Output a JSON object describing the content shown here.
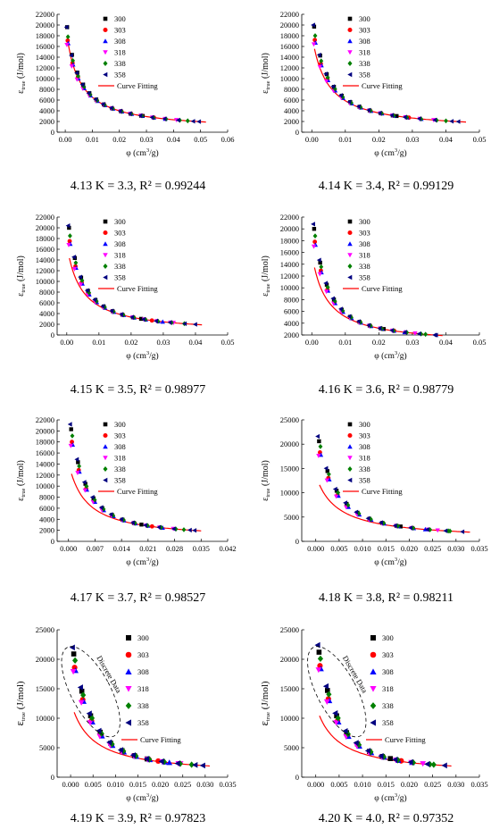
{
  "figure": {
    "legend_labels": [
      "300",
      "303",
      "308",
      "318",
      "338",
      "358"
    ],
    "fit_label": "Curve Fitting",
    "discrete_label": "Discrete Data",
    "ylabel_main": "ε",
    "ylabel_sub": "true",
    "ylabel_unit": " (J/mol)",
    "xlabel_main": "φ (cm",
    "xlabel_sup": "3",
    "xlabel_tail": "/g)",
    "series_colors": [
      "#000000",
      "#ff0000",
      "#0000ff",
      "#ff00ff",
      "#008000",
      "#000080"
    ],
    "series_markers": [
      "square",
      "circle",
      "triangle-up",
      "triangle-down",
      "diamond",
      "triangle-left"
    ],
    "fit_color": "#ff0000"
  },
  "chart_data": [
    {
      "type": "scatter",
      "caption": "4.13 K = 3.3, R² = 0.99244",
      "K": 3.3,
      "R2": 0.99244,
      "xlim": [
        -0.003,
        0.06
      ],
      "xticks": [
        "0.00",
        "0.01",
        "0.02",
        "0.03",
        "0.04",
        "0.05",
        "0.06"
      ],
      "ylim": [
        0,
        22000
      ],
      "yticks": [
        "0",
        "2000",
        "4000",
        "6000",
        "8000",
        "10000",
        "12000",
        "14000",
        "16000",
        "18000",
        "20000",
        "22000"
      ],
      "xmax": 0.052,
      "ystart": [
        19600,
        17100,
        16600,
        16300,
        17800,
        19600
      ],
      "discrete_ellipse": false
    },
    {
      "type": "scatter",
      "caption": "4.14 K = 3.4, R² = 0.99129",
      "K": 3.4,
      "R2": 0.99129,
      "xlim": [
        -0.003,
        0.05
      ],
      "xticks": [
        "0.00",
        "0.01",
        "0.02",
        "0.03",
        "0.04",
        "0.05"
      ],
      "ylim": [
        0,
        22000
      ],
      "yticks": [
        "0",
        "2000",
        "4000",
        "6000",
        "8000",
        "10000",
        "12000",
        "14000",
        "16000",
        "18000",
        "20000",
        "22000"
      ],
      "xmax": 0.046,
      "ystart": [
        19700,
        17200,
        16700,
        16400,
        18000,
        20000
      ],
      "discrete_ellipse": false
    },
    {
      "type": "scatter",
      "caption": "4.15 K = 3.5, R² = 0.98977",
      "K": 3.5,
      "R2": 0.98977,
      "xlim": [
        -0.003,
        0.05
      ],
      "xticks": [
        "0.00",
        "0.01",
        "0.02",
        "0.03",
        "0.04",
        "0.05"
      ],
      "ylim": [
        0,
        22000
      ],
      "yticks": [
        "0",
        "2000",
        "4000",
        "6000",
        "8000",
        "10000",
        "12000",
        "14000",
        "16000",
        "18000",
        "20000",
        "22000"
      ],
      "xmax": 0.042,
      "ystart": [
        20000,
        17500,
        17000,
        16800,
        18500,
        20400
      ],
      "discrete_ellipse": false
    },
    {
      "type": "scatter",
      "caption": "4.16 K = 3.6, R² = 0.98779",
      "K": 3.6,
      "R2": 0.98779,
      "xlim": [
        -0.003,
        0.05
      ],
      "xticks": [
        "0.00",
        "0.01",
        "0.02",
        "0.03",
        "0.04",
        "0.05"
      ],
      "ylim": [
        2000,
        22000
      ],
      "yticks": [
        "2000",
        "4000",
        "6000",
        "8000",
        "10000",
        "12000",
        "14000",
        "16000",
        "18000",
        "20000",
        "22000"
      ],
      "xmax": 0.039,
      "ystart": [
        20000,
        17800,
        17300,
        17000,
        18800,
        20800
      ],
      "discrete_ellipse": false
    },
    {
      "type": "scatter",
      "caption": "4.17 K = 3.7, R² = 0.98527",
      "K": 3.7,
      "R2": 0.98527,
      "xlim": [
        -0.003,
        0.042
      ],
      "xticks": [
        "0.000",
        "0.007",
        "0.014",
        "0.021",
        "0.028",
        "0.035",
        "0.042"
      ],
      "ylim": [
        0,
        22000
      ],
      "yticks": [
        "0",
        "2000",
        "4000",
        "6000",
        "8000",
        "10000",
        "12000",
        "14000",
        "16000",
        "18000",
        "20000",
        "22000"
      ],
      "xmax": 0.035,
      "ystart": [
        20300,
        18000,
        17500,
        17300,
        19100,
        21200
      ],
      "discrete_ellipse": false
    },
    {
      "type": "scatter",
      "caption": "4.18 K = 3.8, R² = 0.98211",
      "K": 3.8,
      "R2": 0.98211,
      "xlim": [
        -0.003,
        0.035
      ],
      "xticks": [
        "0.000",
        "0.005",
        "0.010",
        "0.015",
        "0.020",
        "0.025",
        "0.030",
        "0.035"
      ],
      "ylim": [
        0,
        25000
      ],
      "yticks": [
        "0",
        "5000",
        "10000",
        "15000",
        "20000",
        "25000"
      ],
      "xmax": 0.033,
      "ystart": [
        20600,
        18300,
        17800,
        17600,
        19500,
        21600
      ],
      "discrete_ellipse": false
    },
    {
      "type": "scatter",
      "caption": "4.19 K = 3.9, R² = 0.97823",
      "K": 3.9,
      "R2": 0.97823,
      "xlim": [
        -0.003,
        0.035
      ],
      "xticks": [
        "0.000",
        "0.005",
        "0.010",
        "0.015",
        "0.020",
        "0.025",
        "0.030",
        "0.035"
      ],
      "ylim": [
        0,
        25000
      ],
      "yticks": [
        "0",
        "5000",
        "10000",
        "15000",
        "20000",
        "25000"
      ],
      "xmax": 0.031,
      "ystart": [
        20900,
        18600,
        18100,
        17900,
        19800,
        22000
      ],
      "discrete_ellipse": true
    },
    {
      "type": "scatter",
      "caption": "4.20 K = 4.0, R² = 0.97352",
      "K": 4.0,
      "R2": 0.97352,
      "xlim": [
        -0.003,
        0.035
      ],
      "xticks": [
        "0.000",
        "0.005",
        "0.010",
        "0.015",
        "0.020",
        "0.025",
        "0.030",
        "0.035"
      ],
      "ylim": [
        0,
        25000
      ],
      "yticks": [
        "0",
        "5000",
        "10000",
        "15000",
        "20000",
        "25000"
      ],
      "xmax": 0.029,
      "ystart": [
        21200,
        18900,
        18400,
        18200,
        20100,
        22400
      ],
      "discrete_ellipse": true
    }
  ]
}
